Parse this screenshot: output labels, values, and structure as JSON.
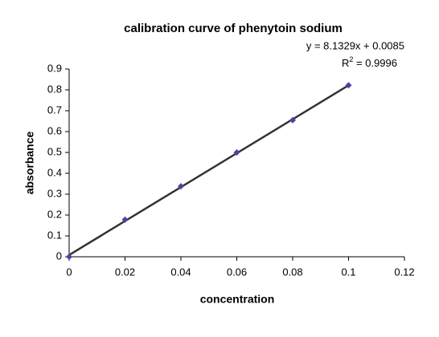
{
  "chart_data": {
    "type": "scatter",
    "title": "calibration curve of phenytoin sodium",
    "x_label": "concentration",
    "y_label": "absorbance",
    "series": [
      {
        "x": [
          0,
          0.02,
          0.04,
          0.06,
          0.08,
          0.1
        ],
        "values": [
          0,
          0.178,
          0.338,
          0.5,
          0.655,
          0.822
        ],
        "color": "#4646a0"
      }
    ],
    "trendline": {
      "equation": "y = 8.1329x + 0.0085",
      "slope": 8.1329,
      "intercept": 0.0085,
      "color": "#333333",
      "r2_parts": [
        "R",
        "2",
        " = 0.9996"
      ]
    },
    "xlim": [
      0,
      0.12
    ],
    "xticks": [
      0,
      0.02,
      0.04,
      0.06,
      0.08,
      0.1,
      0.12
    ],
    "ylim": [
      0,
      0.9
    ],
    "yticks": [
      0,
      0.1,
      0.2,
      0.3,
      0.4,
      0.5,
      0.6,
      0.7,
      0.8,
      0.9
    ],
    "grid": false
  }
}
